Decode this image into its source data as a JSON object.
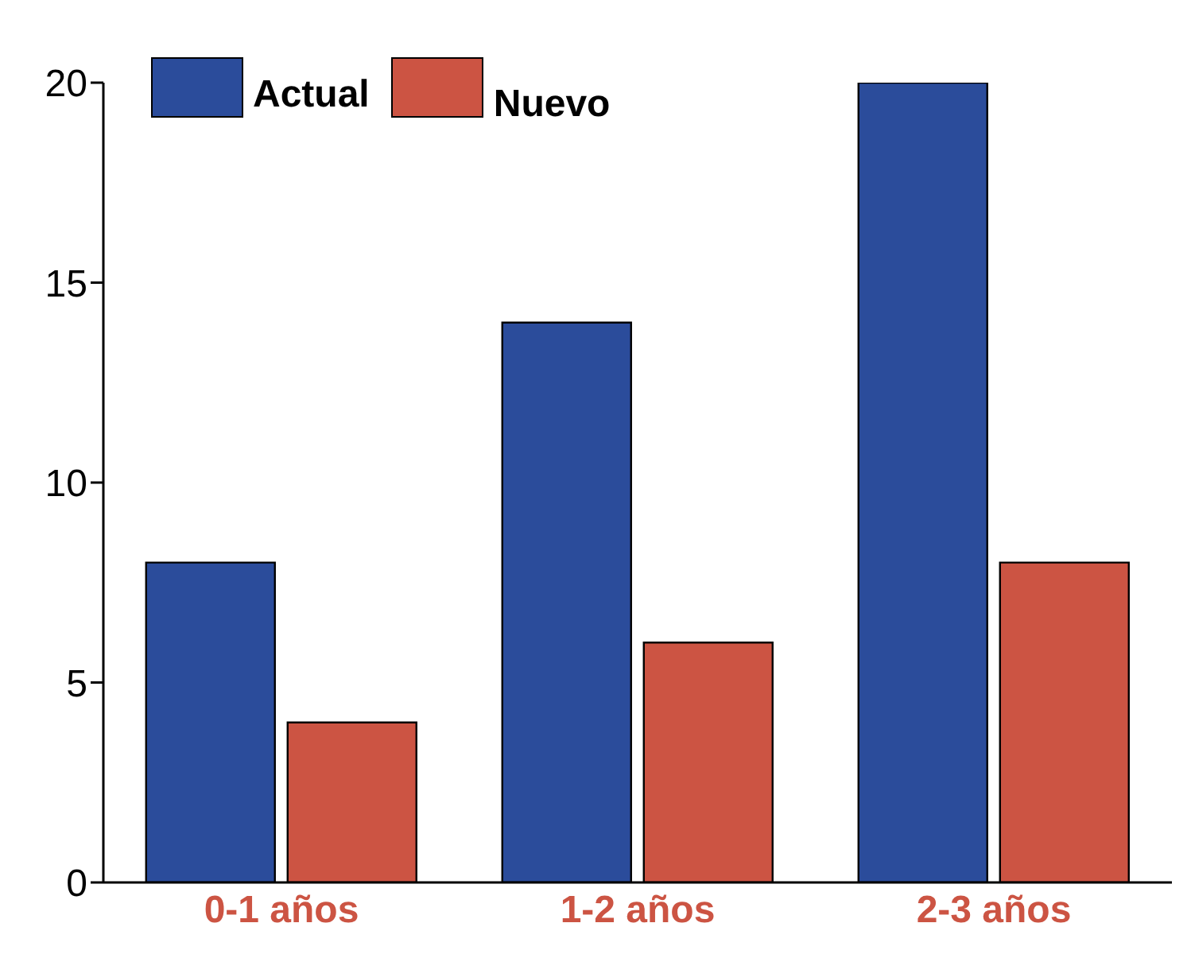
{
  "chart_data": {
    "type": "bar",
    "categories": [
      "0-1 años",
      "1-2 años",
      "2-3 años"
    ],
    "series": [
      {
        "name": "Actual",
        "color": "#2b4c9b",
        "values": [
          8,
          14,
          20
        ]
      },
      {
        "name": "Nuevo",
        "color": "#cc5443",
        "values": [
          4,
          6,
          8
        ]
      }
    ],
    "ylim": [
      0,
      20
    ],
    "yticks": [
      0,
      5,
      10,
      15,
      20
    ],
    "grid": false,
    "legend": "top left"
  }
}
